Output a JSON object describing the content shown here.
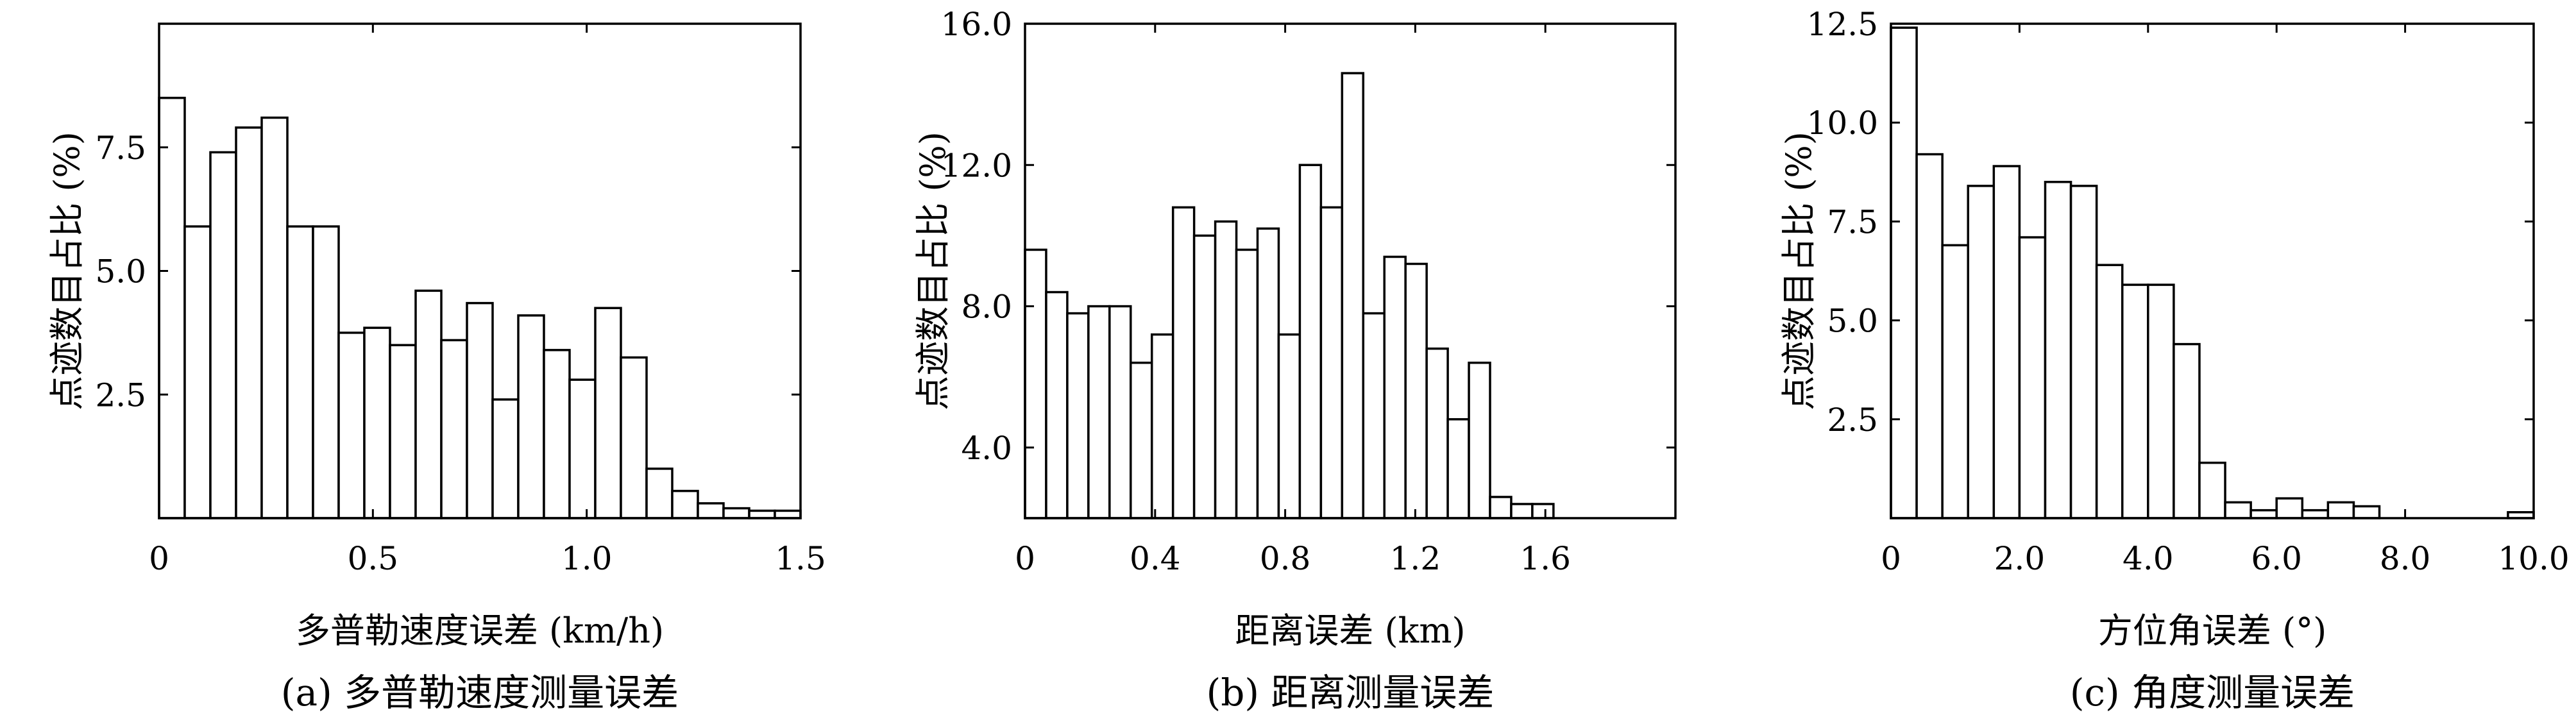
{
  "chart_data": [
    {
      "type": "bar",
      "ylabel": "点迹数目占比 (%)",
      "xlabel": "多普勒速度误差 (km/h)",
      "caption": "(a) 多普勒速度测量误差",
      "xlim": [
        0,
        1.5
      ],
      "ylim": [
        0,
        10.0
      ],
      "xticks": [
        0,
        0.5,
        1.0,
        1.5
      ],
      "xtick_labels": [
        "0",
        "0.5",
        "1.0",
        "1.5"
      ],
      "yticks": [
        2.5,
        5.0,
        7.5
      ],
      "ytick_labels": [
        "2.5",
        "5.0",
        "7.5"
      ],
      "bin_width": 0.06,
      "bin_start": 0.0,
      "values": [
        8.5,
        5.9,
        7.4,
        7.9,
        8.1,
        5.9,
        5.9,
        3.75,
        3.85,
        3.5,
        4.6,
        3.6,
        4.35,
        2.4,
        4.1,
        3.4,
        2.8,
        4.25,
        3.25,
        1.0,
        0.55,
        0.3,
        0.2,
        0.15,
        0.15
      ]
    },
    {
      "type": "bar",
      "ylabel": "点迹数目占比 (%)",
      "xlabel": "距离误差 (km)",
      "caption": "(b) 距离测量误差",
      "xlim": [
        0,
        2.0
      ],
      "ylim": [
        2.0,
        16.0
      ],
      "xticks": [
        0,
        0.4,
        0.8,
        1.2,
        1.6
      ],
      "xtick_labels": [
        "0",
        "0.4",
        "0.8",
        "1.2",
        "1.6"
      ],
      "yticks": [
        4.0,
        8.0,
        12.0,
        16.0
      ],
      "ytick_labels": [
        "4.0",
        "8.0",
        "12.0",
        "16.0"
      ],
      "bin_width": 0.065,
      "bin_start": 0.0,
      "values": [
        9.6,
        8.4,
        7.8,
        8.0,
        8.0,
        6.4,
        7.2,
        10.8,
        10.0,
        10.4,
        9.6,
        10.2,
        7.2,
        12.0,
        10.8,
        14.6,
        7.8,
        9.4,
        9.2,
        6.8,
        4.8,
        6.4,
        2.6,
        2.4,
        2.4
      ]
    },
    {
      "type": "bar",
      "ylabel": "点迹数目占比 (%)",
      "xlabel": "方位角误差 (°)",
      "caption": "(c) 角度测量误差",
      "xlim": [
        0,
        10.0
      ],
      "ylim": [
        0,
        12.5
      ],
      "xticks": [
        0,
        2.0,
        4.0,
        6.0,
        8.0,
        10.0
      ],
      "xtick_labels": [
        "0",
        "2.0",
        "4.0",
        "6.0",
        "8.0",
        "10.0"
      ],
      "yticks": [
        2.5,
        5.0,
        7.5,
        10.0,
        12.5
      ],
      "ytick_labels": [
        "2.5",
        "5.0",
        "7.5",
        "10.0",
        "12.5"
      ],
      "bin_width": 0.4,
      "bin_start": 0.0,
      "values": [
        12.4,
        9.2,
        6.9,
        8.4,
        8.9,
        7.1,
        8.5,
        8.4,
        6.4,
        5.9,
        5.9,
        4.4,
        1.4,
        0.4,
        0.2,
        0.5,
        0.2,
        0.4,
        0.3,
        0,
        0,
        0,
        0,
        0,
        0.15
      ]
    }
  ]
}
